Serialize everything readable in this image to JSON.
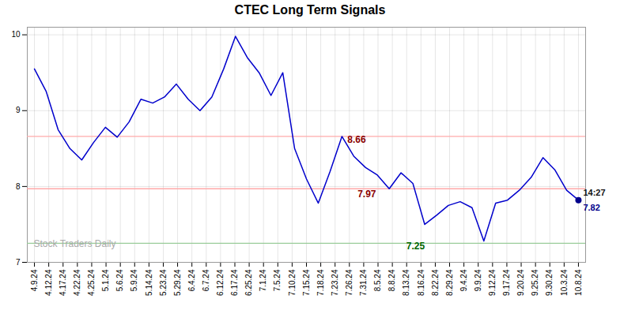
{
  "chart_data": {
    "type": "line",
    "title": "CTEC Long Term Signals",
    "color": "#0000CC",
    "grid": true,
    "x": [
      0,
      0.826087,
      1.652174,
      2.478261,
      3.304348,
      4.130435,
      4.956522,
      5.782609,
      6.608696,
      7.434783,
      8.26087,
      9.086957,
      9.913043,
      10.73913,
      11.565217,
      12.391304,
      13.217391,
      14.043478,
      14.869565,
      15.695652,
      16.521739,
      17.347826,
      18.173913,
      19,
      19.826087,
      20.652174,
      21.478261,
      22.304348,
      23.130435,
      23.956522,
      24.782609,
      25.608696,
      26.434783,
      27.26087,
      28.086957,
      28.913043,
      29.73913,
      30.565217,
      31.391304,
      32.217391,
      33.043478,
      33.869565,
      34.695652,
      35.521739,
      36.347826,
      37.173913,
      38
    ],
    "values": [
      9.55,
      9.25,
      8.75,
      8.5,
      8.35,
      8.58,
      8.78,
      8.65,
      8.85,
      9.15,
      9.1,
      9.18,
      9.35,
      9.15,
      9.0,
      9.18,
      9.55,
      9.98,
      9.7,
      9.5,
      9.2,
      9.5,
      8.5,
      8.1,
      7.78,
      8.2,
      8.66,
      8.4,
      8.25,
      8.15,
      7.97,
      8.18,
      8.04,
      7.5,
      7.62,
      7.75,
      7.8,
      7.72,
      7.28,
      7.78,
      7.82,
      7.95,
      8.12,
      8.38,
      8.22,
      7.95,
      7.82
    ],
    "xlim": [
      -0.5,
      38.5
    ],
    "xticks": [
      {
        "value": 0,
        "label": "4.9.24"
      },
      {
        "value": 1,
        "label": "4.12.24"
      },
      {
        "value": 2,
        "label": "4.17.24"
      },
      {
        "value": 3,
        "label": "4.22.24"
      },
      {
        "value": 4,
        "label": "4.25.24"
      },
      {
        "value": 5,
        "label": "5.1.24"
      },
      {
        "value": 6,
        "label": "5.6.24"
      },
      {
        "value": 7,
        "label": "5.9.24"
      },
      {
        "value": 8,
        "label": "5.14.24"
      },
      {
        "value": 9,
        "label": "5.23.24"
      },
      {
        "value": 10,
        "label": "5.29.24"
      },
      {
        "value": 11,
        "label": "6.4.24"
      },
      {
        "value": 12,
        "label": "6.7.24"
      },
      {
        "value": 13,
        "label": "6.12.24"
      },
      {
        "value": 14,
        "label": "6.17.24"
      },
      {
        "value": 15,
        "label": "6.25.24"
      },
      {
        "value": 16,
        "label": "7.1.24"
      },
      {
        "value": 17,
        "label": "7.5.24"
      },
      {
        "value": 18,
        "label": "7.10.24"
      },
      {
        "value": 19,
        "label": "7.15.24"
      },
      {
        "value": 20,
        "label": "7.18.24"
      },
      {
        "value": 21,
        "label": "7.23.24"
      },
      {
        "value": 22,
        "label": "7.26.24"
      },
      {
        "value": 23,
        "label": "7.31.24"
      },
      {
        "value": 24,
        "label": "8.5.24"
      },
      {
        "value": 25,
        "label": "8.8.24"
      },
      {
        "value": 26,
        "label": "8.13.24"
      },
      {
        "value": 27,
        "label": "8.16.24"
      },
      {
        "value": 28,
        "label": "8.22.24"
      },
      {
        "value": 29,
        "label": "8.29.24"
      },
      {
        "value": 30,
        "label": "9.4.24"
      },
      {
        "value": 31,
        "label": "9.9.24"
      },
      {
        "value": 32,
        "label": "9.12.24"
      },
      {
        "value": 33,
        "label": "9.17.24"
      },
      {
        "value": 34,
        "label": "9.20.24"
      },
      {
        "value": 35,
        "label": "9.25.24"
      },
      {
        "value": 36,
        "label": "9.30.24"
      },
      {
        "value": 37,
        "label": "10.3.24"
      },
      {
        "value": 38,
        "label": "10.8.24"
      }
    ],
    "ylim": [
      7.0,
      10.1
    ],
    "yticks": [
      7,
      8,
      9,
      10
    ],
    "reference_lines": [
      {
        "value": 8.66,
        "color": "#ffaaaa"
      },
      {
        "value": 7.97,
        "color": "#ffaaaa"
      },
      {
        "value": 7.25,
        "color": "#99cc99"
      }
    ],
    "annotations": [
      {
        "text": "8.66",
        "x": 21.478261,
        "y": 8.66,
        "color": "#8B0000"
      },
      {
        "text": "7.97",
        "x": 24.782609,
        "y": 7.97,
        "color": "#8B0000"
      },
      {
        "text": "7.25",
        "x": 31.391304,
        "y": 7.28,
        "color": "#006600"
      }
    ],
    "last_point": {
      "x": 38,
      "y": 7.82,
      "color": "#00008B",
      "time": "14:27",
      "label": "7.82"
    },
    "watermark": "Stock Traders Daily"
  }
}
